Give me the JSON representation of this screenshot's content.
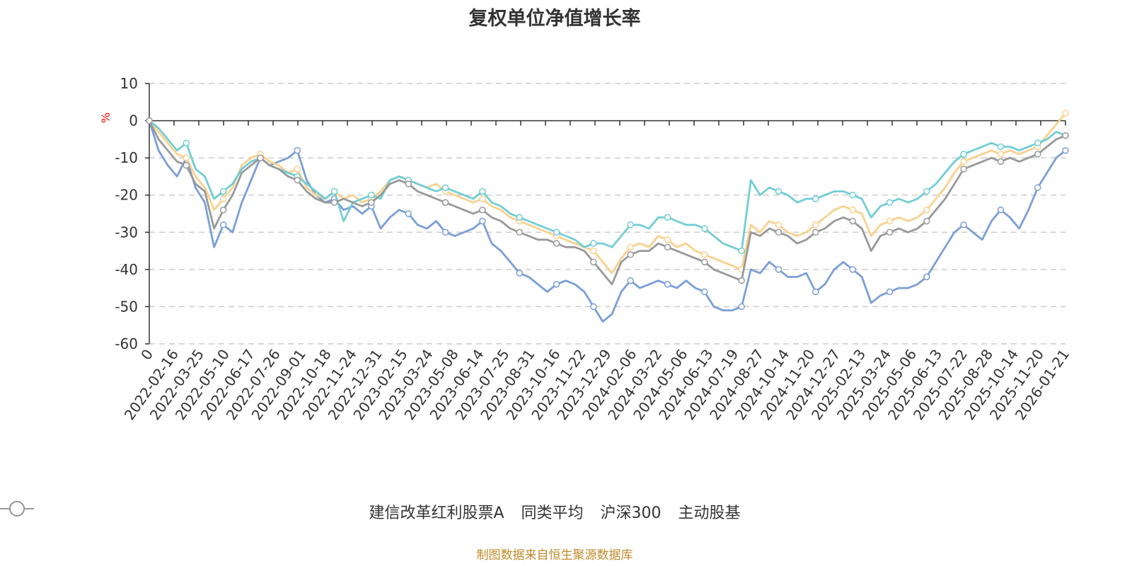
{
  "chart_data": {
    "type": "line",
    "title": "复权单位净值增长率",
    "ylabel": "%",
    "ylim": [
      -60,
      10
    ],
    "yticks": [
      10,
      0,
      -10,
      -20,
      -30,
      -40,
      -50,
      -60
    ],
    "grid": true,
    "legend_position": "bottom",
    "x_tick_labels": [
      "0",
      "2022-02-16",
      "2022-03-25",
      "2022-05-10",
      "2022-06-17",
      "2022-07-26",
      "2022-09-01",
      "2022-10-18",
      "2022-11-24",
      "2022-12-31",
      "2023-02-15",
      "2023-03-24",
      "2023-05-08",
      "2023-06-14",
      "2023-07-25",
      "2023-08-31",
      "2023-10-16",
      "2023-11-22",
      "2023-12-29",
      "2024-02-06",
      "2024-03-22",
      "2024-05-06",
      "2024-06-13",
      "2024-07-19",
      "2024-08-27",
      "2024-10-14",
      "2024-11-20",
      "2024-12-27",
      "2025-02-13",
      "2025-03-24",
      "2025-05-06",
      "2025-06-13",
      "2025-07-22",
      "2025-08-28",
      "2025-10-14",
      "2025-11-20",
      "2026-01-21"
    ],
    "series": [
      {
        "name": "建信改革红利股票A",
        "color": "#7b9fd6",
        "values": [
          0,
          -8,
          -12,
          -15,
          -10,
          -18,
          -22,
          -34,
          -28,
          -30,
          -22,
          -16,
          -10,
          -12,
          -11,
          -10,
          -8,
          -16,
          -20,
          -22,
          -21,
          -24,
          -23,
          -25,
          -23,
          -29,
          -26,
          -24,
          -25,
          -28,
          -29,
          -27,
          -30,
          -31,
          -30,
          -29,
          -27,
          -33,
          -35,
          -38,
          -41,
          -42,
          -44,
          -46,
          -44,
          -43,
          -44,
          -46,
          -50,
          -54,
          -52,
          -46,
          -43,
          -45,
          -44,
          -43,
          -44,
          -45,
          -43,
          -45,
          -46,
          -50,
          -51,
          -51,
          -50,
          -40,
          -41,
          -38,
          -40,
          -42,
          -42,
          -41,
          -46,
          -44,
          -40,
          -38,
          -40,
          -42,
          -49,
          -47,
          -46,
          -45,
          -45,
          -44,
          -42,
          -38,
          -34,
          -30,
          -28,
          -30,
          -32,
          -27,
          -24,
          -26,
          -29,
          -24,
          -18,
          -14,
          -10,
          -8
        ]
      },
      {
        "name": "同类平均",
        "color": "#f9d18d",
        "values": [
          0,
          -3,
          -6,
          -9,
          -10,
          -15,
          -18,
          -24,
          -21,
          -18,
          -12,
          -10,
          -9,
          -11,
          -12,
          -14,
          -13,
          -18,
          -20,
          -21,
          -19,
          -21,
          -20,
          -22,
          -21,
          -19,
          -16,
          -15,
          -16,
          -17,
          -18,
          -17,
          -19,
          -20,
          -21,
          -22,
          -21,
          -23,
          -24,
          -26,
          -27,
          -28,
          -29,
          -30,
          -31,
          -32,
          -33,
          -34,
          -35,
          -38,
          -41,
          -37,
          -34,
          -33,
          -34,
          -31,
          -32,
          -34,
          -33,
          -35,
          -36,
          -37,
          -38,
          -39,
          -40,
          -28,
          -30,
          -27,
          -28,
          -30,
          -31,
          -30,
          -28,
          -26,
          -24,
          -23,
          -24,
          -25,
          -31,
          -28,
          -27,
          -26,
          -27,
          -26,
          -24,
          -21,
          -18,
          -14,
          -11,
          -10,
          -9,
          -8,
          -9,
          -8,
          -9,
          -8,
          -7,
          -4,
          -1,
          2
        ]
      },
      {
        "name": "沪深300",
        "color": "#72cdd4",
        "values": [
          0,
          -2,
          -5,
          -8,
          -6,
          -13,
          -15,
          -21,
          -19,
          -17,
          -13,
          -11,
          -10,
          -12,
          -13,
          -14,
          -15,
          -17,
          -19,
          -21,
          -19,
          -27,
          -22,
          -21,
          -20,
          -21,
          -16,
          -15,
          -16,
          -17,
          -18,
          -19,
          -18,
          -19,
          -20,
          -21,
          -19,
          -22,
          -23,
          -25,
          -26,
          -27,
          -28,
          -29,
          -30,
          -31,
          -32,
          -34,
          -33,
          -33,
          -34,
          -31,
          -28,
          -28,
          -29,
          -26,
          -26,
          -27,
          -28,
          -28,
          -29,
          -31,
          -33,
          -34,
          -35,
          -16,
          -20,
          -18,
          -19,
          -20,
          -22,
          -21,
          -21,
          -20,
          -19,
          -19,
          -20,
          -21,
          -26,
          -23,
          -22,
          -21,
          -22,
          -21,
          -19,
          -17,
          -14,
          -11,
          -9,
          -8,
          -7,
          -6,
          -7,
          -7,
          -8,
          -7,
          -6,
          -5,
          -3,
          -4
        ]
      },
      {
        "name": "主动股基",
        "color": "#999999",
        "values": [
          0,
          -5,
          -8,
          -11,
          -12,
          -17,
          -19,
          -29,
          -24,
          -20,
          -14,
          -12,
          -10,
          -12,
          -13,
          -15,
          -16,
          -19,
          -21,
          -22,
          -22,
          -21,
          -22,
          -23,
          -22,
          -20,
          -17,
          -16,
          -17,
          -19,
          -20,
          -21,
          -22,
          -23,
          -24,
          -25,
          -24,
          -26,
          -27,
          -29,
          -30,
          -31,
          -32,
          -32,
          -33,
          -34,
          -34,
          -35,
          -38,
          -41,
          -44,
          -38,
          -36,
          -35,
          -35,
          -33,
          -34,
          -35,
          -36,
          -37,
          -38,
          -40,
          -41,
          -42,
          -43,
          -30,
          -31,
          -29,
          -30,
          -31,
          -33,
          -32,
          -30,
          -29,
          -27,
          -26,
          -27,
          -29,
          -35,
          -31,
          -30,
          -29,
          -30,
          -29,
          -27,
          -24,
          -21,
          -17,
          -13,
          -12,
          -11,
          -10,
          -11,
          -10,
          -11,
          -10,
          -9,
          -7,
          -5,
          -4
        ]
      }
    ]
  },
  "footer": {
    "source_text": "制图数据来自恒生聚源数据库"
  }
}
